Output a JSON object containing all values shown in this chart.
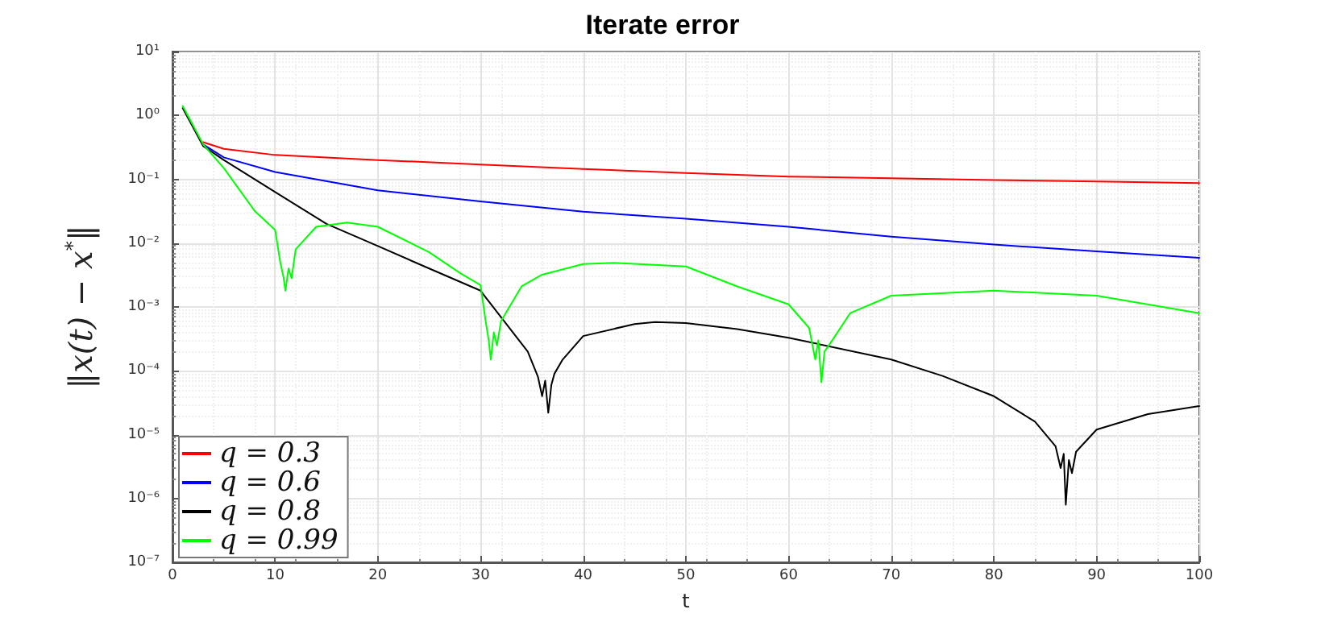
{
  "chart_data": {
    "type": "line",
    "title": "Iterate error",
    "xlabel": "t",
    "ylabel": "‖x(t) − x$^{*}$‖",
    "xlim": [
      0,
      100
    ],
    "xticks": [
      0,
      10,
      20,
      30,
      40,
      50,
      60,
      70,
      80,
      90,
      100
    ],
    "ylim": [
      1e-07,
      10
    ],
    "yticks": [
      {
        "value": 1e-07,
        "label": "10⁻⁷"
      },
      {
        "value": 1e-06,
        "label": "10⁻⁶"
      },
      {
        "value": 1e-05,
        "label": "10⁻⁵"
      },
      {
        "value": 0.0001,
        "label": "10⁻⁴"
      },
      {
        "value": 0.001,
        "label": "10⁻³"
      },
      {
        "value": 0.01,
        "label": "10⁻²"
      },
      {
        "value": 0.1,
        "label": "10⁻¹"
      },
      {
        "value": 1,
        "label": "10⁰"
      },
      {
        "value": 10,
        "label": "10¹"
      }
    ],
    "log": "y",
    "grid": true,
    "legend": "bottom left",
    "marker": "none",
    "line_style": "solid",
    "series": [
      {
        "name": "q = 0.3",
        "color": "#ff0000",
        "x": [
          3,
          5,
          10,
          20,
          30,
          40,
          50,
          60,
          70,
          80,
          90,
          100
        ],
        "values": [
          0.38,
          0.3,
          0.24,
          0.2,
          0.17,
          0.145,
          0.125,
          0.11,
          0.104,
          0.097,
          0.092,
          0.087
        ]
      },
      {
        "name": "q = 0.6",
        "color": "#0000ff",
        "x": [
          3,
          5,
          10,
          20,
          30,
          40,
          50,
          60,
          70,
          80,
          90,
          100
        ],
        "values": [
          0.35,
          0.22,
          0.13,
          0.067,
          0.045,
          0.031,
          0.024,
          0.018,
          0.0126,
          0.0095,
          0.0074,
          0.0059
        ]
      },
      {
        "name": "q = 0.8",
        "color": "#000000",
        "x": [
          1,
          3,
          5,
          10,
          15,
          20,
          25,
          30,
          33,
          34.6,
          35.6,
          36,
          36.3,
          36.6,
          36.9,
          37.2,
          38,
          40,
          45,
          47,
          50,
          55,
          60,
          70,
          75,
          80,
          84,
          86,
          86.5,
          86.8,
          87,
          87.3,
          87.6,
          88,
          90,
          95,
          100
        ],
        "values": [
          1.3,
          0.33,
          0.2,
          0.063,
          0.02,
          0.009,
          0.004,
          0.0018,
          0.00043,
          0.0002,
          8e-05,
          4e-05,
          7e-05,
          2.2e-05,
          6e-05,
          9e-05,
          0.00015,
          0.00035,
          0.00054,
          0.00058,
          0.00056,
          0.00045,
          0.00033,
          0.00015,
          8.3e-05,
          4e-05,
          1.6e-05,
          6.6e-06,
          3e-06,
          5e-06,
          8e-07,
          4e-06,
          2.5e-06,
          5.4e-06,
          1.2e-05,
          2.1e-05,
          2.8e-05
        ]
      },
      {
        "name": "q = 0.99",
        "color": "#00ff00",
        "x": [
          1,
          3,
          5,
          8,
          10,
          10.5,
          10.8,
          11,
          11.3,
          11.6,
          12,
          14,
          17,
          20,
          25,
          28,
          30,
          30.5,
          30.8,
          31,
          31.3,
          31.6,
          32,
          34,
          36,
          40,
          43,
          50,
          55,
          60,
          62,
          62.6,
          62.9,
          63.2,
          63.5,
          64,
          66,
          70,
          80,
          90,
          100
        ],
        "values": [
          1.4,
          0.35,
          0.15,
          0.032,
          0.016,
          0.005,
          0.003,
          0.0018,
          0.004,
          0.0028,
          0.008,
          0.018,
          0.021,
          0.018,
          0.0072,
          0.0034,
          0.0022,
          0.0006,
          0.0003,
          0.00015,
          0.0004,
          0.00025,
          0.0006,
          0.0021,
          0.0032,
          0.0047,
          0.0049,
          0.0043,
          0.0021,
          0.0011,
          0.00047,
          0.00015,
          0.0003,
          6.6e-05,
          0.0002,
          0.00026,
          0.0008,
          0.0015,
          0.0018,
          0.0015,
          0.0008
        ]
      }
    ]
  }
}
